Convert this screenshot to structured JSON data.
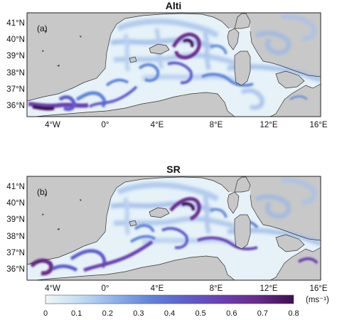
{
  "panels": [
    {
      "title": "Alti",
      "label": "(a)",
      "lat_ticks": [
        "36°N",
        "37°N",
        "38°N",
        "39°N",
        "40°N",
        "41°N"
      ],
      "lon_ticks": [
        "4°W",
        "0°",
        "4°E",
        "8°E",
        "12°E",
        "16°E"
      ]
    },
    {
      "title": "SR",
      "label": "(b)",
      "lat_ticks": [
        "36°N",
        "37°N",
        "38°N",
        "39°N",
        "40°N",
        "41°N"
      ],
      "lon_ticks": [
        "4°W",
        "0°",
        "4°E",
        "8°E",
        "12°E",
        "16°E"
      ]
    }
  ],
  "map": {
    "lon_range": [
      -6.5,
      16
    ],
    "lat_range": [
      35.2,
      41.5
    ],
    "land_color": "#c8c8c8",
    "sea_low_color": "#e6f2f8",
    "sea_mid_color": "#6f93dc",
    "sea_high_color": "#3a0f4a"
  },
  "colorbar": {
    "ticks": [
      "0",
      "0.1",
      "0.2",
      "0.3",
      "0.4",
      "0.5",
      "0.6",
      "0.7",
      "0.8"
    ],
    "unit": "(ms⁻¹)",
    "range": [
      0,
      0.8
    ],
    "colors": [
      "#eef7fa",
      "#c3dcf2",
      "#8fb1ea",
      "#5f84da",
      "#5f5ccc",
      "#6a3fb3",
      "#6a2a8f",
      "#3d0f4e"
    ]
  }
}
